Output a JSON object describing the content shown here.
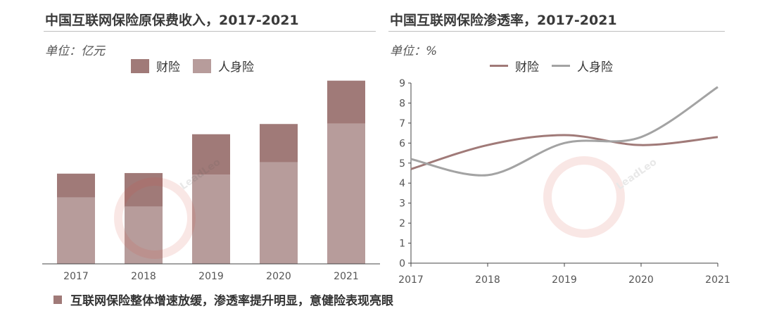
{
  "left": {
    "title": "中国互联网保险原保费收入，2017-2021",
    "unit": "单位：亿元"
  },
  "right": {
    "title": "中国互联网保险渗透率，2017-2021",
    "unit": "单位：%"
  },
  "footer": {
    "text": "互联网保险整体增速放缓，渗透率提升明显，意健险表现亮眼"
  },
  "colors": {
    "property": "#a07a78",
    "life": "#b79c9b",
    "life_line": "#a3a3a3",
    "footer_marker": "#a07a78",
    "watermark": "#d94b3f"
  },
  "watermark_text": "LeadLeo",
  "chart_data": [
    {
      "type": "bar",
      "stacked": true,
      "categories": [
        "2017",
        "2018",
        "2019",
        "2020",
        "2021"
      ],
      "series": [
        {
          "name": "人身险",
          "values": [
            1383,
            1193,
            1857,
            2111,
            2916
          ]
        },
        {
          "name": "财险",
          "values": [
            493,
            695,
            838,
            797,
            893
          ]
        }
      ],
      "ylim": [
        0,
        3950
      ],
      "legend": "top-center",
      "grid": false
    },
    {
      "type": "line",
      "x": [
        "2017",
        "2018",
        "2019",
        "2020",
        "2021"
      ],
      "series": [
        {
          "name": "财险",
          "values": [
            4.7,
            5.9,
            6.4,
            5.9,
            6.3
          ]
        },
        {
          "name": "人身险",
          "values": [
            5.2,
            4.4,
            6.0,
            6.3,
            8.8
          ]
        }
      ],
      "ylim": [
        0,
        9
      ],
      "yticks": [
        0,
        1,
        2,
        3,
        4,
        5,
        6,
        7,
        8,
        9
      ],
      "legend": "top-center",
      "grid": false,
      "smooth": true
    }
  ]
}
